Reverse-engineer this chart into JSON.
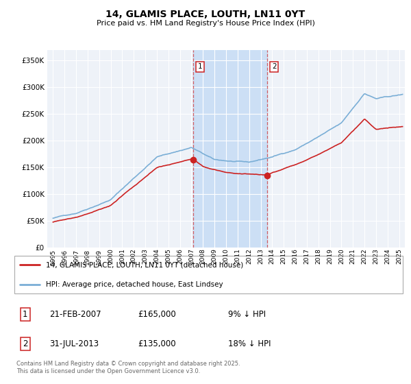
{
  "title": "14, GLAMIS PLACE, LOUTH, LN11 0YT",
  "subtitle": "Price paid vs. HM Land Registry's House Price Index (HPI)",
  "ytick_values": [
    0,
    50000,
    100000,
    150000,
    200000,
    250000,
    300000,
    350000
  ],
  "ylim": [
    0,
    370000
  ],
  "xlim_start": 1994.5,
  "xlim_end": 2025.5,
  "hpi_color": "#7aaed6",
  "price_color": "#cc2222",
  "vspan_color": "#ccdff5",
  "transaction1_x": 2007.13,
  "transaction1_price": 165000,
  "transaction2_x": 2013.58,
  "transaction2_price": 135000,
  "legend_line1": "14, GLAMIS PLACE, LOUTH, LN11 0YT (detached house)",
  "legend_line2": "HPI: Average price, detached house, East Lindsey",
  "table_row1": [
    "1",
    "21-FEB-2007",
    "£165,000",
    "9% ↓ HPI"
  ],
  "table_row2": [
    "2",
    "31-JUL-2013",
    "£135,000",
    "18% ↓ HPI"
  ],
  "footnote": "Contains HM Land Registry data © Crown copyright and database right 2025.\nThis data is licensed under the Open Government Licence v3.0.",
  "background_color": "#ffffff",
  "plot_bg_color": "#eef2f8"
}
